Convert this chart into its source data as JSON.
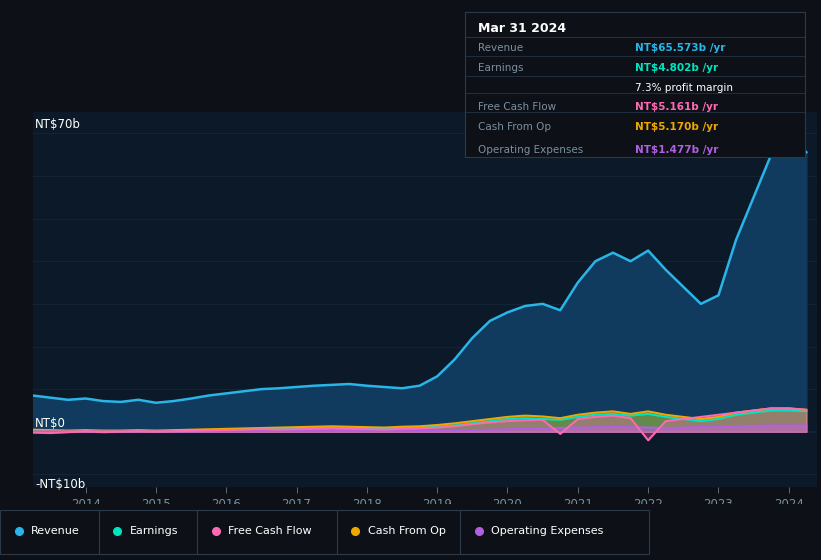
{
  "bg_color": "#0d1117",
  "plot_bg_color": "#0b1929",
  "grid_color": "#162535",
  "ylabel_top": "NT$70b",
  "ylabel_zero": "NT$0",
  "ylabel_neg": "-NT$10b",
  "ylim": [
    -13,
    75
  ],
  "years": [
    2013.25,
    2013.5,
    2013.75,
    2014.0,
    2014.25,
    2014.5,
    2014.75,
    2015.0,
    2015.25,
    2015.5,
    2015.75,
    2016.0,
    2016.25,
    2016.5,
    2016.75,
    2017.0,
    2017.25,
    2017.5,
    2017.75,
    2018.0,
    2018.25,
    2018.5,
    2018.75,
    2019.0,
    2019.25,
    2019.5,
    2019.75,
    2020.0,
    2020.25,
    2020.5,
    2020.75,
    2021.0,
    2021.25,
    2021.5,
    2021.75,
    2022.0,
    2022.25,
    2022.5,
    2022.75,
    2023.0,
    2023.25,
    2023.5,
    2023.75,
    2024.0,
    2024.25
  ],
  "revenue": [
    8.5,
    8.0,
    7.5,
    7.8,
    7.2,
    7.0,
    7.5,
    6.8,
    7.2,
    7.8,
    8.5,
    9.0,
    9.5,
    10.0,
    10.2,
    10.5,
    10.8,
    11.0,
    11.2,
    10.8,
    10.5,
    10.2,
    10.8,
    13.0,
    17.0,
    22.0,
    26.0,
    28.0,
    29.5,
    30.0,
    28.5,
    35.0,
    40.0,
    42.0,
    40.0,
    42.5,
    38.0,
    34.0,
    30.0,
    32.0,
    45.0,
    55.0,
    65.0,
    70.0,
    65.573
  ],
  "earnings": [
    0.3,
    0.2,
    0.1,
    0.2,
    0.1,
    0.1,
    0.2,
    0.1,
    0.2,
    0.3,
    0.4,
    0.5,
    0.6,
    0.7,
    0.8,
    0.9,
    1.0,
    1.1,
    1.0,
    0.9,
    0.8,
    0.9,
    1.0,
    1.2,
    1.5,
    2.0,
    2.5,
    3.0,
    3.2,
    3.0,
    2.8,
    3.5,
    4.0,
    4.2,
    3.8,
    4.2,
    3.5,
    3.0,
    2.5,
    3.0,
    4.0,
    4.5,
    5.0,
    5.0,
    4.802
  ],
  "free_cash_flow": [
    -0.2,
    -0.3,
    -0.1,
    0.1,
    -0.1,
    0.0,
    0.1,
    0.0,
    0.1,
    0.2,
    0.3,
    0.4,
    0.5,
    0.6,
    0.5,
    0.6,
    0.7,
    0.8,
    0.7,
    0.6,
    0.5,
    0.7,
    0.8,
    1.0,
    1.3,
    1.8,
    2.2,
    2.5,
    2.7,
    2.8,
    -0.5,
    3.0,
    3.5,
    3.8,
    3.2,
    -2.0,
    2.5,
    3.0,
    3.5,
    4.0,
    4.5,
    5.0,
    5.5,
    5.5,
    5.161
  ],
  "cash_from_op": [
    0.5,
    0.4,
    0.3,
    0.4,
    0.3,
    0.3,
    0.4,
    0.3,
    0.4,
    0.5,
    0.6,
    0.7,
    0.8,
    0.9,
    1.0,
    1.1,
    1.2,
    1.3,
    1.2,
    1.1,
    1.0,
    1.2,
    1.3,
    1.6,
    2.0,
    2.5,
    3.0,
    3.5,
    3.8,
    3.6,
    3.2,
    4.0,
    4.5,
    4.8,
    4.2,
    4.8,
    4.0,
    3.5,
    3.0,
    3.5,
    4.5,
    5.0,
    5.5,
    5.5,
    5.17
  ],
  "operating_expenses": [
    0.1,
    0.1,
    0.1,
    0.1,
    0.1,
    0.1,
    0.1,
    0.1,
    0.1,
    0.1,
    0.1,
    0.1,
    0.1,
    0.2,
    0.2,
    0.2,
    0.2,
    0.2,
    0.2,
    0.2,
    0.2,
    0.2,
    0.2,
    0.3,
    0.3,
    0.4,
    0.5,
    0.6,
    0.7,
    0.8,
    0.9,
    1.0,
    1.1,
    1.2,
    1.1,
    1.0,
    0.9,
    1.0,
    1.1,
    1.2,
    1.3,
    1.4,
    1.5,
    1.5,
    1.477
  ],
  "revenue_color": "#29b5e8",
  "earnings_color": "#00e5c0",
  "free_cash_flow_color": "#ff69b4",
  "cash_from_op_color": "#f0a800",
  "operating_expenses_color": "#b060e0",
  "revenue_fill_color": "#103a5e",
  "legend_items": [
    "Revenue",
    "Earnings",
    "Free Cash Flow",
    "Cash From Op",
    "Operating Expenses"
  ],
  "legend_colors": [
    "#29b5e8",
    "#00e5c0",
    "#ff69b4",
    "#f0a800",
    "#b060e0"
  ],
  "xtick_labels": [
    "2014",
    "2015",
    "2016",
    "2017",
    "2018",
    "2019",
    "2020",
    "2021",
    "2022",
    "2023",
    "2024"
  ],
  "xtick_positions": [
    2014,
    2015,
    2016,
    2017,
    2018,
    2019,
    2020,
    2021,
    2022,
    2023,
    2024
  ],
  "tooltip": {
    "date": "Mar 31 2024",
    "rows": [
      {
        "label": "Revenue",
        "value": "NT$65.573b /yr",
        "color": "#29b5e8",
        "extra": null
      },
      {
        "label": "Earnings",
        "value": "NT$4.802b /yr",
        "color": "#00e5c0",
        "extra": "7.3% profit margin"
      },
      {
        "label": "Free Cash Flow",
        "value": "NT$5.161b /yr",
        "color": "#ff69b4",
        "extra": null
      },
      {
        "label": "Cash From Op",
        "value": "NT$5.170b /yr",
        "color": "#f0a800",
        "extra": null
      },
      {
        "label": "Operating Expenses",
        "value": "NT$1.477b /yr",
        "color": "#b060e0",
        "extra": null
      }
    ]
  }
}
